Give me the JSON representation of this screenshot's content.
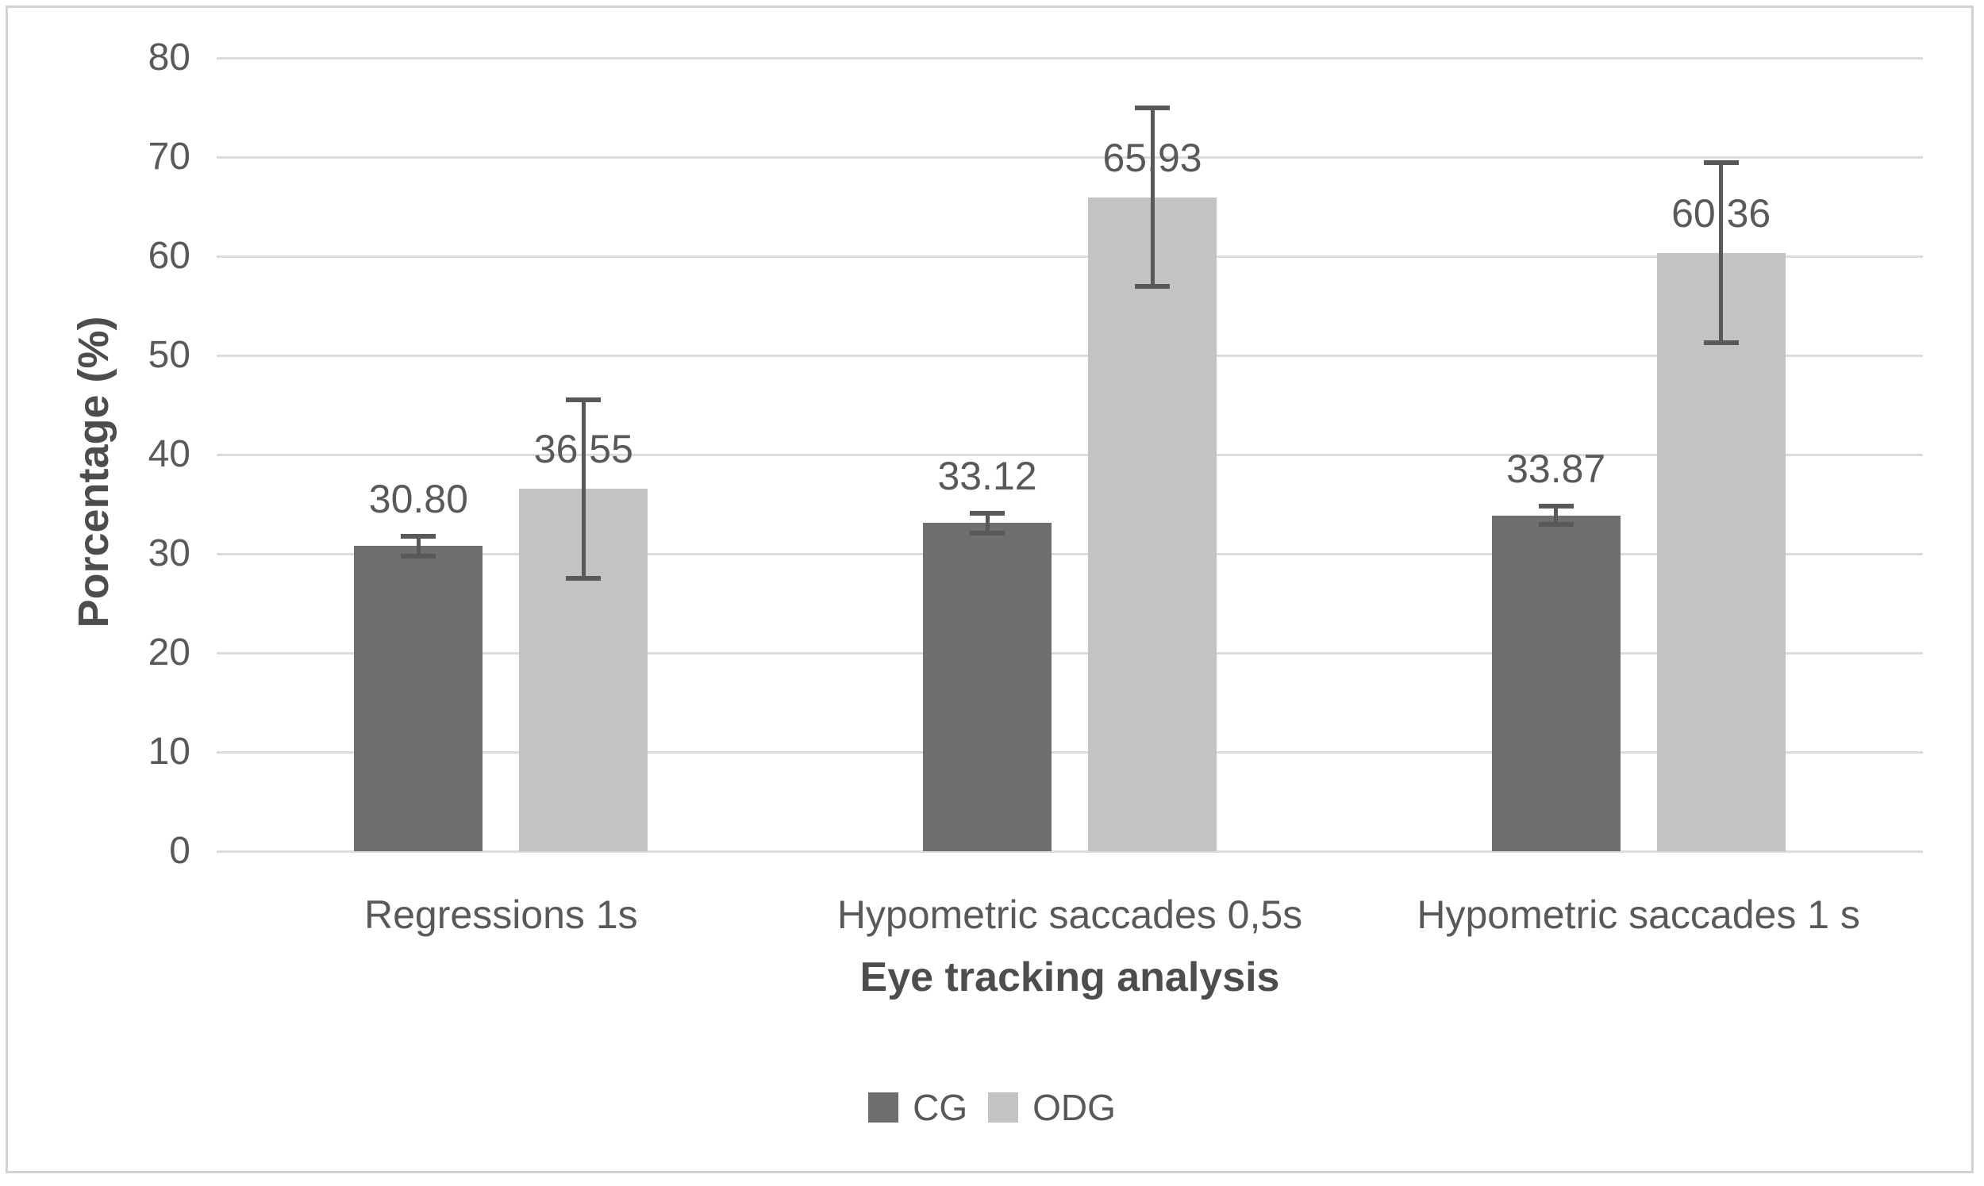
{
  "figure": {
    "background": "#ffffff",
    "border_color": "#d2d2d2"
  },
  "chart_data": {
    "type": "bar",
    "title": "",
    "xlabel": "Eye tracking analysis",
    "ylabel": "Porcentage (%)",
    "ylim": [
      0,
      80
    ],
    "yticks": [
      "0",
      "10",
      "20",
      "30",
      "40",
      "50",
      "60",
      "70",
      "80"
    ],
    "grid": "horizontal",
    "gridline_color": "#dcdcdc",
    "text_color": "#595959",
    "error_bar_color": "#595959",
    "legend_position": "bottom",
    "categories": [
      "Regressions 1s",
      "Hypometric saccades 0,5s",
      "Hypometric saccades 1 s"
    ],
    "series": [
      {
        "name": "CG",
        "color": "#6f6f6f",
        "values": [
          30.8,
          33.12,
          33.87
        ],
        "errors": [
          1.0,
          1.0,
          0.9
        ],
        "labels": [
          "30.80",
          "33.12",
          "33.87"
        ]
      },
      {
        "name": "ODG",
        "color": "#c3c3c3",
        "values": [
          36.55,
          65.93,
          60.36
        ],
        "errors": [
          9.0,
          9.0,
          9.1
        ],
        "labels": [
          "36.55",
          "65.93",
          "60.36"
        ]
      }
    ]
  }
}
